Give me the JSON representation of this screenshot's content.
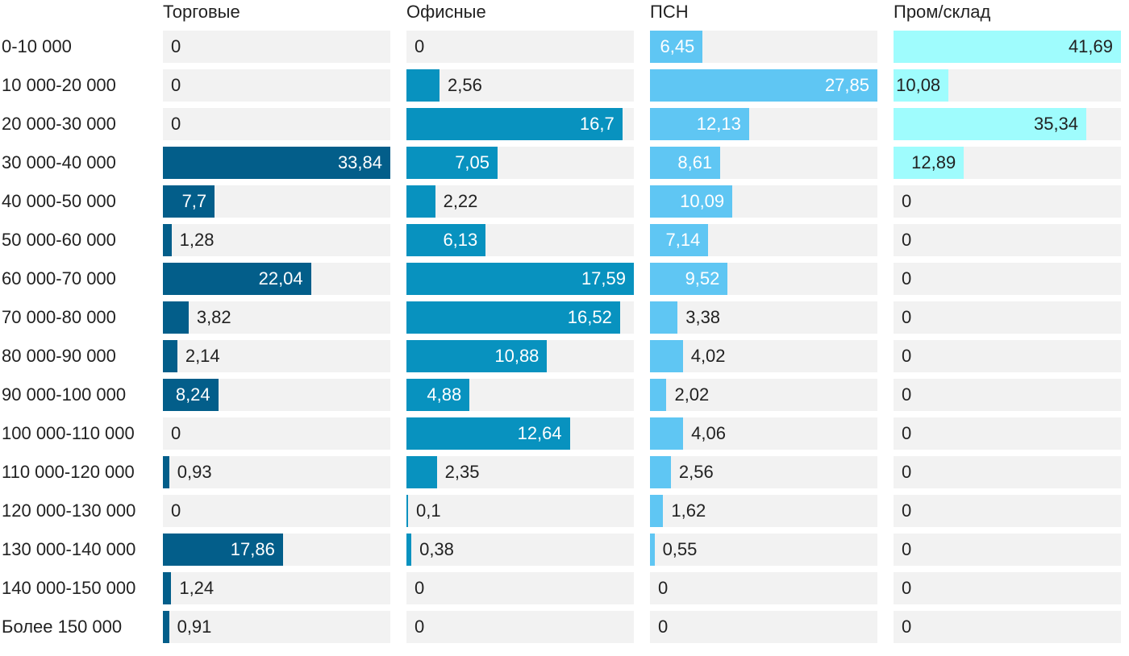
{
  "chart_data": {
    "type": "bar",
    "orientation": "horizontal",
    "layout": "small-multiples",
    "categories": [
      "0-10 000",
      "10 000-20 000",
      "20 000-30 000",
      "30 000-40 000",
      "40 000-50 000",
      "50 000-60 000",
      "60 000-70 000",
      "70 000-80 000",
      "80 000-90 000",
      "90 000-100 000",
      "100 000-110 000",
      "110 000-120 000",
      "120 000-130 000",
      "130 000-140 000",
      "140 000-150 000",
      "Более 150 000"
    ],
    "series": [
      {
        "name": "Торговые",
        "color": "#035e8a",
        "max": 33.84,
        "values": [
          0,
          0,
          0,
          33.84,
          7.7,
          1.28,
          22.04,
          3.82,
          2.14,
          8.24,
          0,
          0.93,
          0,
          17.86,
          1.24,
          0.91
        ],
        "labels": [
          "0",
          "0",
          "0",
          "33,84",
          "7,7",
          "1,28",
          "22,04",
          "3,82",
          "2,14",
          "8,24",
          "0",
          "0,93",
          "0",
          "17,86",
          "1,24",
          "0,91"
        ]
      },
      {
        "name": "Офисные",
        "color": "#0892bf",
        "max": 17.59,
        "values": [
          0,
          2.56,
          16.7,
          7.05,
          2.22,
          6.13,
          17.59,
          16.52,
          10.88,
          4.88,
          12.64,
          2.35,
          0.1,
          0.38,
          0,
          0
        ],
        "labels": [
          "0",
          "2,56",
          "16,7",
          "7,05",
          "2,22",
          "6,13",
          "17,59",
          "16,52",
          "10,88",
          "4,88",
          "12,64",
          "2,35",
          "0,1",
          "0,38",
          "0",
          "0"
        ]
      },
      {
        "name": "ПСН",
        "color": "#5fc6f3",
        "max": 27.85,
        "values": [
          6.45,
          27.85,
          12.13,
          8.61,
          10.09,
          7.14,
          9.52,
          3.38,
          4.02,
          2.02,
          4.06,
          2.56,
          1.62,
          0.55,
          0,
          0
        ],
        "labels": [
          "6,45",
          "27,85",
          "12,13",
          "8,61",
          "10,09",
          "7,14",
          "9,52",
          "3,38",
          "4,02",
          "2,02",
          "4,06",
          "2,56",
          "1,62",
          "0,55",
          "0",
          "0"
        ]
      },
      {
        "name": "Пром/склад",
        "color": "#9ffcfd",
        "max": 41.69,
        "values": [
          41.69,
          10.08,
          35.34,
          12.89,
          0,
          0,
          0,
          0,
          0,
          0,
          0,
          0,
          0,
          0,
          0,
          0
        ],
        "labels": [
          "41,69",
          "10,08",
          "35,34",
          "12,89",
          "0",
          "0",
          "0",
          "0",
          "0",
          "0",
          "0",
          "0",
          "0",
          "0",
          "0",
          "0"
        ]
      }
    ],
    "title": "",
    "xlabel": "",
    "ylabel": "",
    "grid": false,
    "legend": "none"
  }
}
